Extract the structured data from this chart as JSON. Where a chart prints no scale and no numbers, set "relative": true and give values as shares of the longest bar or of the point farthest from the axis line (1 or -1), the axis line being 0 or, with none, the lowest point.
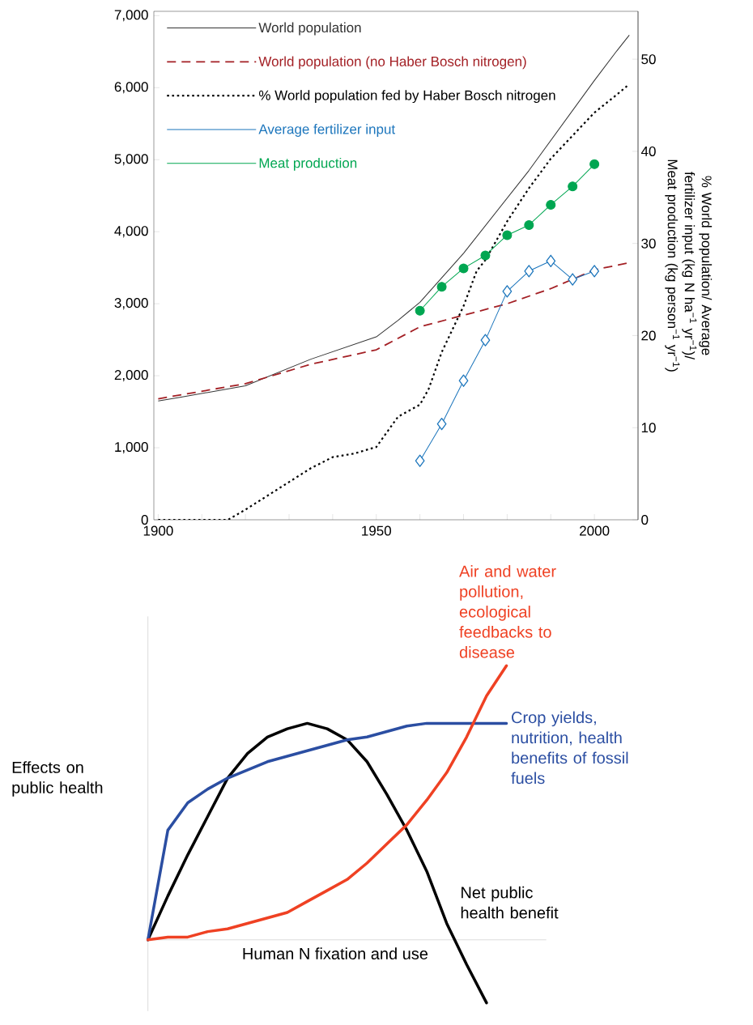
{
  "chart_data": [
    {
      "type": "line",
      "xlim": [
        1899,
        2010
      ],
      "ylim": [
        0,
        7060
      ],
      "y2lim": [
        0,
        55.2
      ],
      "xticks": [
        1900,
        {
          "value": 1910,
          "label": null
        },
        {
          "value": 1920,
          "label": null
        },
        {
          "value": 1930,
          "label": null
        },
        {
          "value": 1940,
          "label": null
        },
        1950,
        {
          "value": 1960,
          "label": null
        },
        {
          "value": 1970,
          "label": null
        },
        {
          "value": 1980,
          "label": null
        },
        {
          "value": 1990,
          "label": null
        },
        2000
      ],
      "yticks": [
        0,
        {
          "value": 1000,
          "label": "1,000"
        },
        {
          "value": 2000,
          "label": "2,000"
        },
        {
          "value": 3000,
          "label": "3,000"
        },
        {
          "value": 4000,
          "label": "4,000"
        },
        {
          "value": 5000,
          "label": "5,000"
        },
        {
          "value": 6000,
          "label": "6,000"
        },
        {
          "value": 7000,
          "label": "7,000"
        }
      ],
      "y2ticks": [
        0,
        10,
        20,
        30,
        40,
        50
      ],
      "y2label": "% World population/ Average fertilizer input (kg N ha$^{−1}$ yr$^{−1}$)/ Meat production (kg person$^{−1}$ yr$^{−1}$)",
      "legend": "top left",
      "series": [
        {
          "name": "World population",
          "color": "#333333",
          "line_style": "solid",
          "x": [
            1900,
            1905,
            1920,
            1935,
            1950,
            1955,
            1960,
            1970,
            1985,
            2000,
            2005,
            2008
          ],
          "values": [
            1650,
            1700,
            1860,
            2230,
            2540,
            2770,
            3020,
            3700,
            4850,
            6100,
            6500,
            6730
          ]
        },
        {
          "name": "World population (no Haber Bosch nitrogen)",
          "color": "#a31f24",
          "line_style": "dashed",
          "x": [
            1900,
            1920,
            1935,
            1950,
            1960,
            1970,
            1980,
            1990,
            2000,
            2008
          ],
          "values": [
            1680,
            1890,
            2160,
            2360,
            2680,
            2840,
            3000,
            3210,
            3470,
            3570
          ]
        },
        {
          "name": "% World population fed by Haber Bosch nitrogen",
          "color": "#000000",
          "line_style": "dotted",
          "axis": "y2",
          "x": [
            1900,
            1916,
            1920,
            1930,
            1935,
            1940,
            1945,
            1950,
            1955,
            1960,
            1962,
            1965,
            1970,
            1973,
            1975,
            1980,
            1985,
            1990,
            1995,
            2000,
            2005,
            2008
          ],
          "values": [
            0,
            0,
            1.1,
            4.1,
            5.6,
            6.8,
            7.2,
            7.9,
            11.2,
            12.5,
            14.2,
            18.2,
            23.2,
            27.0,
            28.2,
            32.4,
            36.0,
            39.2,
            41.7,
            44.2,
            46.1,
            47.3
          ]
        },
        {
          "name": "Average fertilizer input",
          "color": "#1b75bc",
          "line_style": "solid",
          "marker": "diamond",
          "axis": "y2",
          "x": [
            1960,
            1965,
            1970,
            1975,
            1980,
            1985,
            1990,
            1995,
            2000
          ],
          "values": [
            6.4,
            10.4,
            15.1,
            19.5,
            24.8,
            27.0,
            28.1,
            26.1,
            27.0
          ]
        },
        {
          "name": "Meat production",
          "color": "#00a651",
          "line_style": "solid",
          "marker": "circle",
          "axis": "y2",
          "x": [
            1960,
            1965,
            1970,
            1975,
            1980,
            1985,
            1990,
            1995,
            2000
          ],
          "values": [
            22.7,
            25.3,
            27.3,
            28.7,
            30.9,
            32.0,
            34.2,
            36.2,
            38.6
          ]
        }
      ]
    },
    {
      "type": "line",
      "relative": true,
      "xlabel": "Human N fixation and use",
      "ylabel": "Effects on public health",
      "categories": [
        null,
        null,
        null,
        null,
        null,
        null,
        null,
        null,
        null,
        null,
        null,
        null,
        null,
        null,
        null,
        null,
        null,
        null,
        null,
        null,
        null
      ],
      "series": [
        {
          "name": "Net public health benefit",
          "color": "#000000",
          "values": [
            0,
            0.16,
            0.31,
            0.45,
            0.59,
            0.68,
            0.74,
            0.77,
            0.79,
            0.77,
            0.73,
            0.65,
            0.53,
            0.4,
            0.25,
            0.06,
            -0.09,
            -0.23,
            null,
            null,
            null
          ]
        },
        {
          "name": "Crop yields, nutrition, health benefits of fossil fuels",
          "color": "#2b4ea2",
          "values": [
            0,
            0.4,
            0.5,
            0.55,
            0.59,
            0.62,
            0.65,
            0.67,
            0.69,
            0.71,
            0.73,
            0.74,
            0.76,
            0.78,
            0.79,
            0.79,
            0.79,
            0.79,
            0.79,
            null,
            null
          ]
        },
        {
          "name": "Air and water pollution, ecological feedbacks to disease",
          "color": "#ef4123",
          "values": [
            0,
            0.01,
            0.01,
            0.03,
            0.04,
            0.06,
            0.08,
            0.1,
            0.14,
            0.18,
            0.22,
            0.28,
            0.35,
            0.42,
            0.51,
            0.61,
            0.74,
            0.89,
            1,
            null,
            null
          ]
        }
      ]
    }
  ]
}
